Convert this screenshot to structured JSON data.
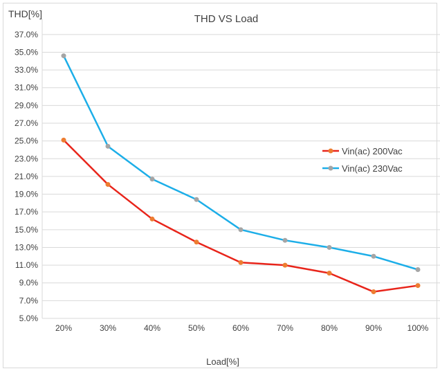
{
  "chart_data": {
    "type": "line",
    "title": "THD VS Load",
    "ylabel": "THD[%]",
    "xlabel": "Load[%]",
    "categories": [
      "20%",
      "30%",
      "40%",
      "50%",
      "60%",
      "70%",
      "80%",
      "90%",
      "100%"
    ],
    "x": [
      20,
      30,
      40,
      50,
      60,
      70,
      80,
      90,
      100
    ],
    "yticks": [
      "5.0%",
      "7.0%",
      "9.0%",
      "11.0%",
      "13.0%",
      "15.0%",
      "17.0%",
      "19.0%",
      "21.0%",
      "23.0%",
      "25.0%",
      "27.0%",
      "29.0%",
      "31.0%",
      "33.0%",
      "35.0%",
      "37.0%"
    ],
    "ylim": [
      5,
      38
    ],
    "grid": true,
    "legend_position": "right",
    "series": [
      {
        "name": "Vin(ac) 200Vac",
        "color": "#e8241a",
        "marker_color": "#ed7d31",
        "x": [
          20,
          30,
          40,
          50,
          60,
          70,
          80,
          90,
          100
        ],
        "values": [
          25.1,
          20.1,
          16.2,
          13.6,
          11.3,
          11.0,
          10.1,
          8.0,
          8.7
        ]
      },
      {
        "name": "Vin(ac) 230Vac",
        "color": "#1caee8",
        "marker_color": "#a5a5a5",
        "x": [
          20,
          30,
          40,
          50,
          60,
          70,
          80,
          90,
          100
        ],
        "values": [
          34.6,
          24.4,
          20.7,
          18.4,
          15.0,
          13.8,
          13.0,
          12.0,
          10.5
        ]
      }
    ]
  }
}
